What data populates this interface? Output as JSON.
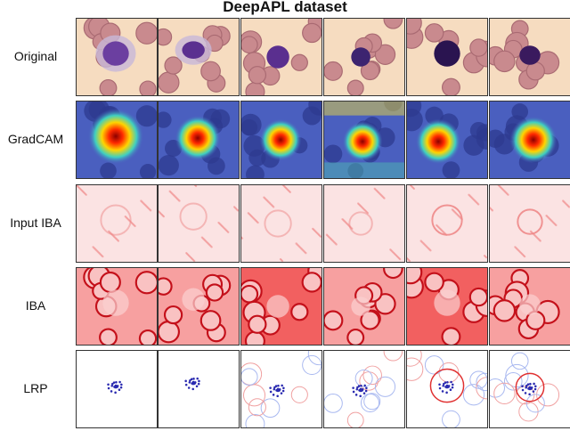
{
  "figure": {
    "title": "DeepAPL dataset",
    "rows": [
      {
        "label": "Original",
        "kind": "original"
      },
      {
        "label": "GradCAM",
        "kind": "gradcam"
      },
      {
        "label": "Input IBA",
        "kind": "inputiba"
      },
      {
        "label": "IBA",
        "kind": "iba"
      },
      {
        "label": "LRP",
        "kind": "lrp"
      }
    ],
    "columns": 6
  }
}
